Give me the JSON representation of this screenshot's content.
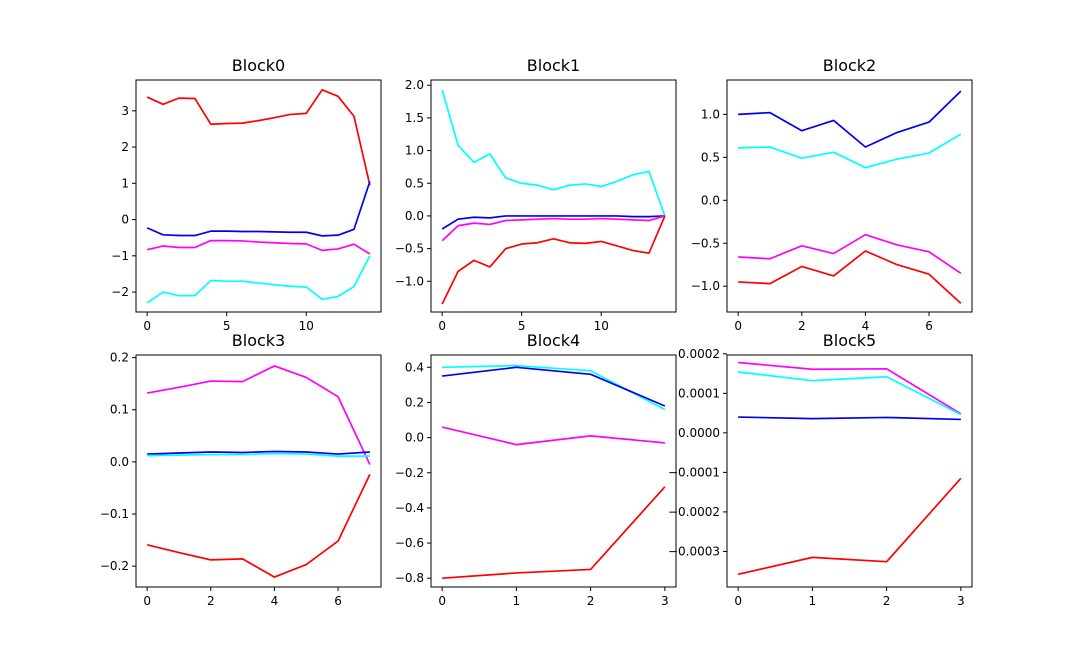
{
  "colors": {
    "blue": "#0000ee",
    "cyan": "#00ffff",
    "magenta": "#ff00ff",
    "red": "#ff0000"
  },
  "chart_data": [
    {
      "type": "line",
      "title": "Block0",
      "xlabel": "",
      "ylabel": "",
      "xlim": [
        -0.7,
        14.7
      ],
      "ylim": [
        -2.55,
        3.85
      ],
      "xticks": [
        0,
        5,
        10
      ],
      "xtick_labels": [
        "0",
        "5",
        "10"
      ],
      "yticks": [
        -2,
        -1,
        0,
        1,
        2,
        3
      ],
      "ytick_labels": [
        "−2",
        "−1",
        "0",
        "1",
        "2",
        "3"
      ],
      "x": [
        0,
        1,
        2,
        3,
        4,
        5,
        6,
        7,
        8,
        9,
        10,
        11,
        12,
        13,
        14
      ],
      "series": [
        {
          "color": "red",
          "values": [
            3.38,
            3.18,
            3.35,
            3.34,
            2.63,
            2.65,
            2.66,
            2.73,
            2.81,
            2.9,
            2.93,
            3.58,
            3.4,
            2.85,
            0.95
          ]
        },
        {
          "color": "blue",
          "values": [
            -0.23,
            -0.42,
            -0.44,
            -0.44,
            -0.32,
            -0.32,
            -0.33,
            -0.33,
            -0.34,
            -0.35,
            -0.35,
            -0.45,
            -0.43,
            -0.27,
            1.05
          ]
        },
        {
          "color": "magenta",
          "values": [
            -0.83,
            -0.73,
            -0.77,
            -0.77,
            -0.58,
            -0.58,
            -0.59,
            -0.62,
            -0.64,
            -0.66,
            -0.67,
            -0.85,
            -0.81,
            -0.68,
            -0.95
          ]
        },
        {
          "color": "cyan",
          "values": [
            -2.3,
            -2.0,
            -2.1,
            -2.1,
            -1.68,
            -1.7,
            -1.7,
            -1.75,
            -1.8,
            -1.84,
            -1.86,
            -2.2,
            -2.12,
            -1.85,
            -1.0
          ]
        }
      ]
    },
    {
      "type": "line",
      "title": "Block1",
      "xlabel": "",
      "ylabel": "",
      "xlim": [
        -0.7,
        14.7
      ],
      "ylim": [
        -1.47,
        2.08
      ],
      "xticks": [
        0,
        5,
        10
      ],
      "xtick_labels": [
        "0",
        "5",
        "10"
      ],
      "yticks": [
        -1.0,
        -0.5,
        0.0,
        0.5,
        1.0,
        1.5,
        2.0
      ],
      "ytick_labels": [
        "−1.0",
        "−0.5",
        "0.0",
        "0.5",
        "1.0",
        "1.5",
        "2.0"
      ],
      "x": [
        0,
        1,
        2,
        3,
        4,
        5,
        6,
        7,
        8,
        9,
        10,
        11,
        12,
        13,
        14
      ],
      "series": [
        {
          "color": "cyan",
          "values": [
            1.93,
            1.08,
            0.82,
            0.95,
            0.58,
            0.5,
            0.47,
            0.4,
            0.47,
            0.49,
            0.45,
            0.53,
            0.63,
            0.68,
            0.0
          ]
        },
        {
          "color": "blue",
          "values": [
            -0.2,
            -0.05,
            -0.02,
            -0.03,
            0.0,
            0.0,
            0.0,
            0.0,
            0.0,
            0.0,
            0.0,
            0.0,
            -0.01,
            -0.01,
            0.0
          ]
        },
        {
          "color": "magenta",
          "values": [
            -0.38,
            -0.15,
            -0.11,
            -0.13,
            -0.07,
            -0.06,
            -0.05,
            -0.04,
            -0.05,
            -0.05,
            -0.04,
            -0.05,
            -0.06,
            -0.07,
            0.0
          ]
        },
        {
          "color": "red",
          "values": [
            -1.35,
            -0.85,
            -0.68,
            -0.78,
            -0.5,
            -0.43,
            -0.41,
            -0.35,
            -0.41,
            -0.42,
            -0.39,
            -0.46,
            -0.53,
            -0.57,
            0.0
          ]
        }
      ]
    },
    {
      "type": "line",
      "title": "Block2",
      "xlabel": "",
      "ylabel": "",
      "xlim": [
        -0.35,
        7.35
      ],
      "ylim": [
        -1.3,
        1.4
      ],
      "xticks": [
        0,
        2,
        4,
        6
      ],
      "xtick_labels": [
        "0",
        "2",
        "4",
        "6"
      ],
      "yticks": [
        -1.0,
        -0.5,
        0.0,
        0.5,
        1.0
      ],
      "ytick_labels": [
        "−1.0",
        "−0.5",
        "0.0",
        "0.5",
        "1.0"
      ],
      "x": [
        0,
        1,
        2,
        3,
        4,
        5,
        6,
        7
      ],
      "series": [
        {
          "color": "blue",
          "values": [
            1.0,
            1.02,
            0.81,
            0.93,
            0.62,
            0.79,
            0.91,
            1.27
          ]
        },
        {
          "color": "cyan",
          "values": [
            0.61,
            0.62,
            0.49,
            0.56,
            0.38,
            0.48,
            0.55,
            0.77
          ]
        },
        {
          "color": "magenta",
          "values": [
            -0.66,
            -0.68,
            -0.53,
            -0.62,
            -0.4,
            -0.52,
            -0.6,
            -0.85
          ]
        },
        {
          "color": "red",
          "values": [
            -0.95,
            -0.97,
            -0.77,
            -0.88,
            -0.59,
            -0.75,
            -0.86,
            -1.2
          ]
        }
      ]
    },
    {
      "type": "line",
      "title": "Block3",
      "xlabel": "",
      "ylabel": "",
      "xlim": [
        -0.35,
        7.35
      ],
      "ylim": [
        -0.24,
        0.205
      ],
      "xticks": [
        0,
        2,
        4,
        6
      ],
      "xtick_labels": [
        "0",
        "2",
        "4",
        "6"
      ],
      "yticks": [
        -0.2,
        -0.1,
        0.0,
        0.1,
        0.2
      ],
      "ytick_labels": [
        "−0.2",
        "−0.1",
        "0.0",
        "0.1",
        "0.2"
      ],
      "x": [
        0,
        1,
        2,
        3,
        4,
        5,
        6,
        7
      ],
      "series": [
        {
          "color": "magenta",
          "values": [
            0.132,
            0.143,
            0.155,
            0.154,
            0.184,
            0.162,
            0.125,
            -0.005
          ]
        },
        {
          "color": "blue",
          "values": [
            0.015,
            0.017,
            0.019,
            0.018,
            0.02,
            0.019,
            0.015,
            0.019
          ]
        },
        {
          "color": "cyan",
          "values": [
            0.012,
            0.013,
            0.014,
            0.014,
            0.016,
            0.015,
            0.011,
            0.011
          ]
        },
        {
          "color": "red",
          "values": [
            -0.159,
            -0.174,
            -0.188,
            -0.186,
            -0.221,
            -0.197,
            -0.152,
            -0.024
          ]
        }
      ]
    },
    {
      "type": "line",
      "title": "Block4",
      "xlabel": "",
      "ylabel": "",
      "xlim": [
        -0.15,
        3.15
      ],
      "ylim": [
        -0.85,
        0.47
      ],
      "xticks": [
        0,
        1,
        2,
        3
      ],
      "xtick_labels": [
        "0",
        "1",
        "2",
        "3"
      ],
      "yticks": [
        -0.8,
        -0.6,
        -0.4,
        -0.2,
        0.0,
        0.2,
        0.4
      ],
      "ytick_labels": [
        "−0.8",
        "−0.6",
        "−0.4",
        "−0.2",
        "0.0",
        "0.2",
        "0.4"
      ],
      "x": [
        0,
        1,
        2,
        3
      ],
      "series": [
        {
          "color": "cyan",
          "values": [
            0.4,
            0.41,
            0.38,
            0.16
          ]
        },
        {
          "color": "blue",
          "values": [
            0.35,
            0.4,
            0.36,
            0.18
          ]
        },
        {
          "color": "magenta",
          "values": [
            0.06,
            -0.04,
            0.01,
            -0.03
          ]
        },
        {
          "color": "red",
          "values": [
            -0.8,
            -0.77,
            -0.75,
            -0.28
          ]
        }
      ]
    },
    {
      "type": "line",
      "title": "Block5",
      "xlabel": "",
      "ylabel": "",
      "xlim": [
        -0.15,
        3.15
      ],
      "ylim": [
        -0.00039,
        0.000197
      ],
      "xticks": [
        0,
        1,
        2,
        3
      ],
      "xtick_labels": [
        "0",
        "1",
        "2",
        "3"
      ],
      "yticks": [
        -0.0003,
        -0.0002,
        -0.0001,
        0.0,
        0.0001,
        0.0002
      ],
      "ytick_labels": [
        "−0.0003",
        "−0.0002",
        "−0.0001",
        "0.0000",
        "0.0001",
        "0.0002"
      ],
      "x": [
        0,
        1,
        2,
        3
      ],
      "series": [
        {
          "color": "magenta",
          "values": [
            0.000178,
            0.000161,
            0.000162,
            4.8e-05
          ]
        },
        {
          "color": "cyan",
          "values": [
            0.000154,
            0.000132,
            0.000142,
            4.6e-05
          ]
        },
        {
          "color": "blue",
          "values": [
            4e-05,
            3.6e-05,
            3.9e-05,
            3.4e-05
          ]
        },
        {
          "color": "red",
          "values": [
            -0.000358,
            -0.000315,
            -0.000326,
            -0.000115
          ]
        }
      ]
    }
  ]
}
